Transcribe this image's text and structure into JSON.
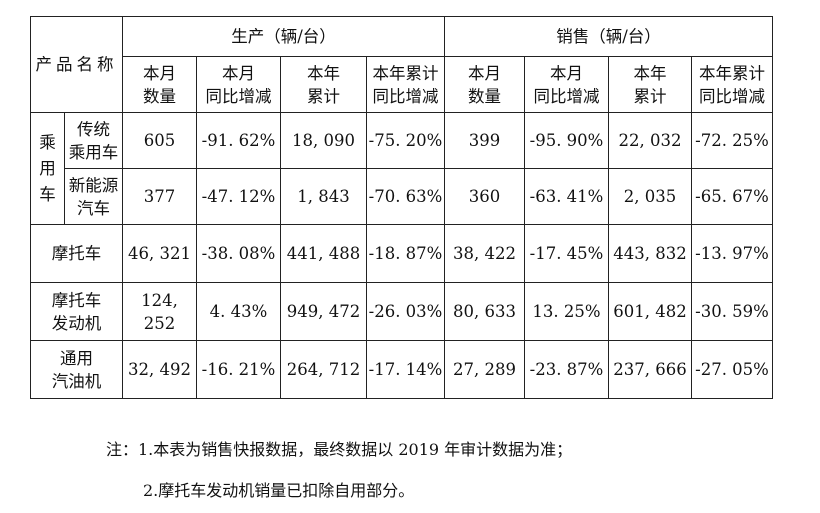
{
  "table": {
    "corner_label": "产品名称",
    "group_headers": [
      "生产（辆/台）",
      "销售（辆/台）"
    ],
    "sub_headers": [
      [
        "本月",
        "数量"
      ],
      [
        "本月",
        "同比增减"
      ],
      [
        "本年",
        "累计"
      ],
      [
        "本年累计",
        "同比增减"
      ],
      [
        "本月",
        "数量"
      ],
      [
        "本月",
        "同比增减"
      ],
      [
        "本年",
        "累计"
      ],
      [
        "本年累计",
        "同比增减"
      ]
    ],
    "passenger_car_label": [
      "乘",
      "用",
      "车"
    ],
    "rows": [
      {
        "label": [
          "传统",
          "乘用车"
        ],
        "values": [
          "605",
          "-91. 62%",
          "18, 090",
          "-75. 20%",
          "399",
          "-95. 90%",
          "22, 032",
          "-72. 25%"
        ]
      },
      {
        "label": [
          "新能源",
          "汽车"
        ],
        "values": [
          "377",
          "-47. 12%",
          "1, 843",
          "-70. 63%",
          "360",
          "-63. 41%",
          "2, 035",
          "-65. 67%"
        ]
      },
      {
        "label": [
          "摩托车"
        ],
        "values": [
          "46, 321",
          "-38. 08%",
          "441, 488",
          "-18. 87%",
          "38, 422",
          "-17. 45%",
          "443, 832",
          "-13. 97%"
        ]
      },
      {
        "label": [
          "摩托车",
          "发动机"
        ],
        "values": [
          "124, 252",
          "4. 43%",
          "949, 472",
          "-26. 03%",
          "80, 633",
          "13. 25%",
          "601, 482",
          "-30. 59%"
        ]
      },
      {
        "label": [
          "通用",
          "汽油机"
        ],
        "values": [
          "32, 492",
          "-16. 21%",
          "264, 712",
          "-17. 14%",
          "27, 289",
          "-23. 87%",
          "237, 666",
          "-27. 05%"
        ]
      }
    ]
  },
  "notes": [
    "注：1.本表为销售快报数据，最终数据以 2019 年审计数据为准；",
    "2.摩托车发动机销量已扣除自用部分。"
  ]
}
